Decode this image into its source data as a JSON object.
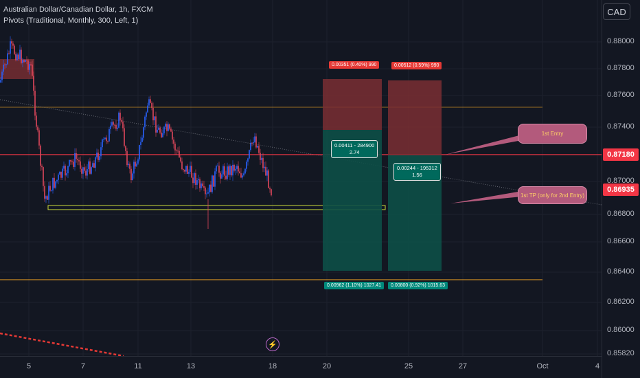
{
  "legend": {
    "symbol": "Australian Dollar/Canadian Dollar, 1h, FXCM",
    "indicator": "Pivots (Traditional, Monthly, 300, Left, 1)"
  },
  "currency_button": "CAD",
  "y_axis": {
    "ticks": [
      "0.88000",
      "0.87800",
      "0.87600",
      "0.87400",
      "0.87000",
      "0.86800",
      "0.86600",
      "0.86400",
      "0.86200",
      "0.86000",
      "0.85820"
    ]
  },
  "price_tags": {
    "level_line": "0.87180",
    "last_price": "0.86935"
  },
  "x_axis": {
    "ticks": [
      "5",
      "7",
      "11",
      "13",
      "18",
      "20",
      "25",
      "27",
      "Oct",
      "4"
    ]
  },
  "positions": {
    "left": {
      "top_label": "0.00351 (0.40%) 990",
      "middle_label_line1": "0.00411 - 284900",
      "middle_label_line2": "2.74",
      "bottom_label": "0.00962 (1.10%) 1027.41"
    },
    "right": {
      "top_label": "0.00512 (0.59%) 990",
      "middle_label_line1": "0.00244 - 195312",
      "middle_label_line2": "1.56",
      "bottom_label": "0.00800 (0.92%) 1015.63"
    }
  },
  "callouts": {
    "first_entry": "1st Entry",
    "first_tp": "1st TP (only for 2nd Entry)"
  },
  "colors": {
    "background": "#131722",
    "candle_up": "#2962ff",
    "candle_down": "#e0475b",
    "stop_zone": "#7a2e33",
    "target_zone": "#0d4f47",
    "level_line": "#f23645",
    "pivot_line": "#f5a623",
    "callout_fill": "#b35a7c"
  },
  "icons": {
    "event_marker": "lightning-bolt-icon"
  }
}
